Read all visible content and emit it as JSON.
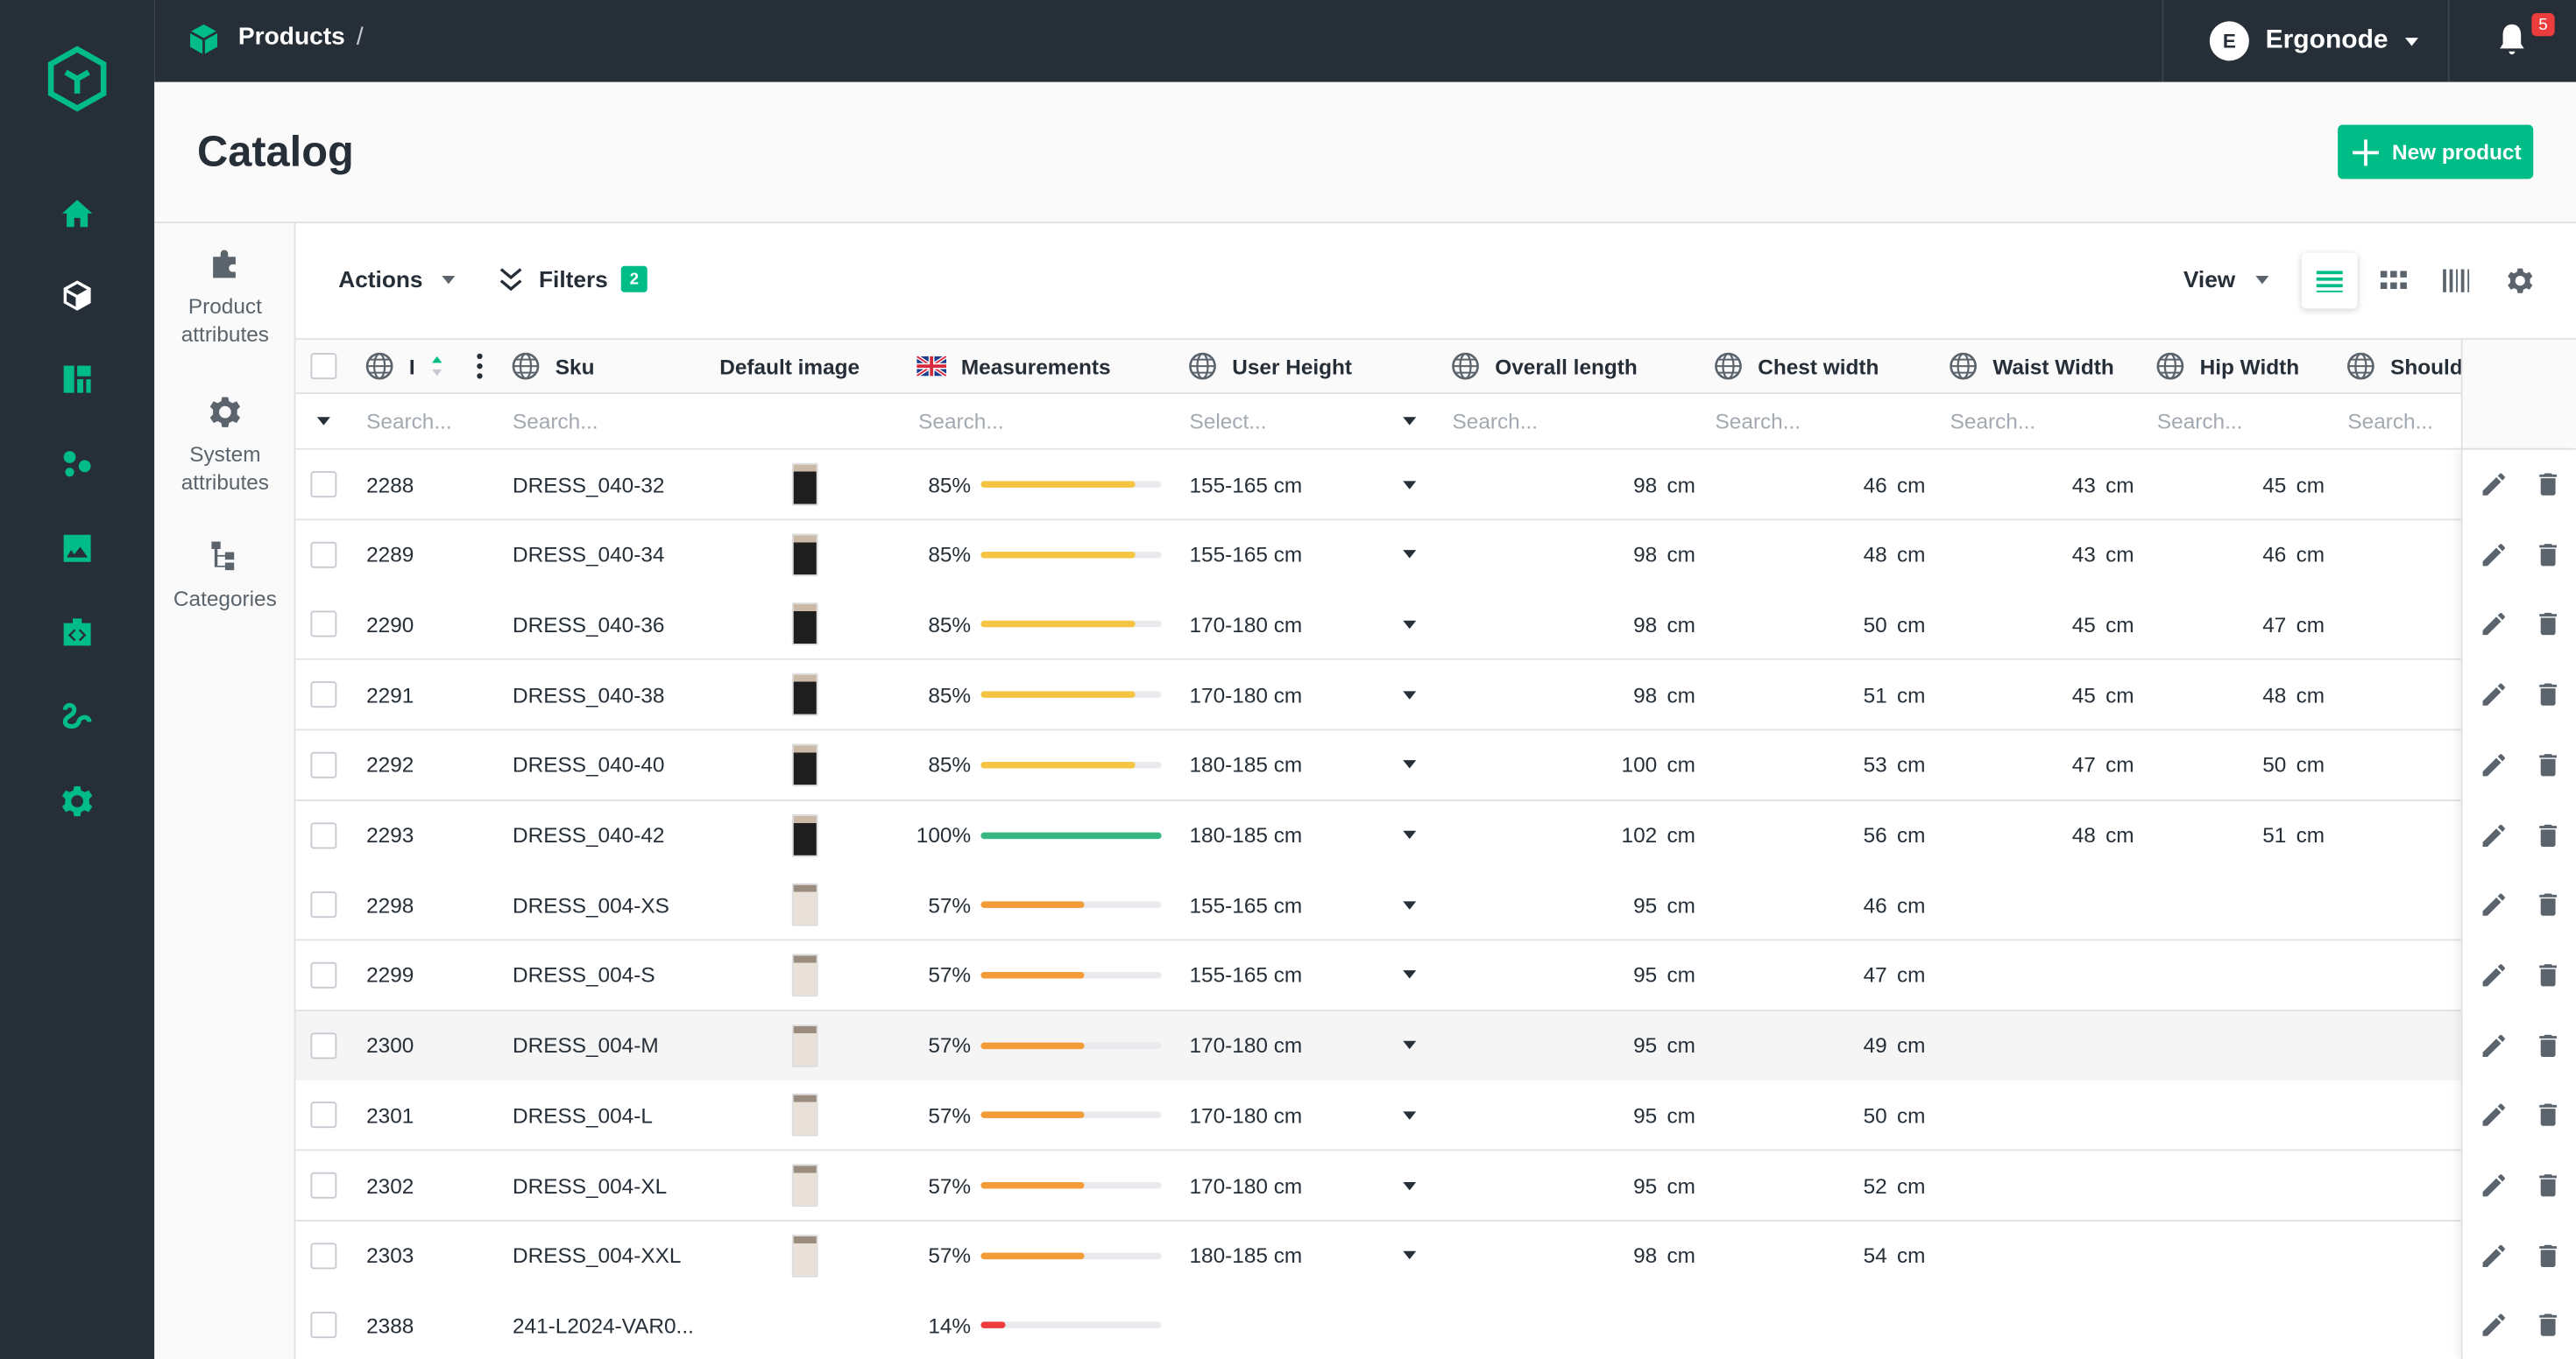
{
  "topbar": {
    "breadcrumb": "Products",
    "separator": "/",
    "user_initial": "E",
    "user_name": "Ergonode",
    "notifications": "5"
  },
  "nav": [
    "home-icon",
    "products-icon",
    "dashboard-icon",
    "collections-icon",
    "media-icon",
    "import-export-icon",
    "workflow-icon",
    "settings-icon"
  ],
  "page": {
    "title": "Catalog",
    "new_product": "New product"
  },
  "sidetabs": {
    "product_attributes": [
      "Product",
      "attributes"
    ],
    "system_attributes": [
      "System",
      "attributes"
    ],
    "categories": "Categories"
  },
  "toolbar": {
    "actions": "Actions",
    "filters": "Filters",
    "filters_count": "2",
    "view": "View"
  },
  "columns": {
    "id": "I",
    "sku": "Sku",
    "image": "Default image",
    "measurements": "Measurements",
    "user_height": "User Height",
    "overall_length": "Overall length",
    "chest_width": "Chest width",
    "waist_width": "Waist Width",
    "hip_width": "Hip Width",
    "shoulder": "Shoulde"
  },
  "filters_row": {
    "id": "Search...",
    "sku": "Search...",
    "measurements": "Search...",
    "user_height": "Select...",
    "overall_length": "Search...",
    "chest_width": "Search...",
    "waist_width": "Search...",
    "hip_width": "Search...",
    "shoulder": "Search..."
  },
  "unit": "cm",
  "colors": {
    "accent": "#00bc87",
    "dark": "#262f38",
    "yellow": "#f5c443",
    "orange": "#f29b38",
    "red": "#ec3c3c",
    "green": "#35b77f"
  },
  "rows": [
    {
      "id": "2288",
      "sku": "DRESS_040-32",
      "pct": "85%",
      "p": 0.85,
      "height": "155-165 cm",
      "length": "98",
      "chest": "46",
      "waist": "43",
      "hip": "45",
      "img": "dark"
    },
    {
      "id": "2289",
      "sku": "DRESS_040-34",
      "pct": "85%",
      "p": 0.85,
      "height": "155-165 cm",
      "length": "98",
      "chest": "48",
      "waist": "43",
      "hip": "46",
      "img": "dark"
    },
    {
      "id": "2290",
      "sku": "DRESS_040-36",
      "pct": "85%",
      "p": 0.85,
      "height": "170-180 cm",
      "length": "98",
      "chest": "50",
      "waist": "45",
      "hip": "47",
      "img": "dark"
    },
    {
      "id": "2291",
      "sku": "DRESS_040-38",
      "pct": "85%",
      "p": 0.85,
      "height": "170-180 cm",
      "length": "98",
      "chest": "51",
      "waist": "45",
      "hip": "48",
      "img": "dark"
    },
    {
      "id": "2292",
      "sku": "DRESS_040-40",
      "pct": "85%",
      "p": 0.85,
      "height": "180-185 cm",
      "length": "100",
      "chest": "53",
      "waist": "47",
      "hip": "50",
      "img": "dark"
    },
    {
      "id": "2293",
      "sku": "DRESS_040-42",
      "pct": "100%",
      "p": 1.0,
      "height": "180-185 cm",
      "length": "102",
      "chest": "56",
      "waist": "48",
      "hip": "51",
      "img": "dark"
    },
    {
      "id": "2298",
      "sku": "DRESS_004-XS",
      "pct": "57%",
      "p": 0.57,
      "height": "155-165 cm",
      "length": "95",
      "chest": "46",
      "waist": "",
      "hip": "",
      "img": "light"
    },
    {
      "id": "2299",
      "sku": "DRESS_004-S",
      "pct": "57%",
      "p": 0.57,
      "height": "155-165 cm",
      "length": "95",
      "chest": "47",
      "waist": "",
      "hip": "",
      "img": "light"
    },
    {
      "id": "2300",
      "sku": "DRESS_004-M",
      "pct": "57%",
      "p": 0.57,
      "height": "170-180 cm",
      "length": "95",
      "chest": "49",
      "waist": "",
      "hip": "",
      "img": "light"
    },
    {
      "id": "2301",
      "sku": "DRESS_004-L",
      "pct": "57%",
      "p": 0.57,
      "height": "170-180 cm",
      "length": "95",
      "chest": "50",
      "waist": "",
      "hip": "",
      "img": "light"
    },
    {
      "id": "2302",
      "sku": "DRESS_004-XL",
      "pct": "57%",
      "p": 0.57,
      "height": "170-180 cm",
      "length": "95",
      "chest": "52",
      "waist": "",
      "hip": "",
      "img": "light"
    },
    {
      "id": "2303",
      "sku": "DRESS_004-XXL",
      "pct": "57%",
      "p": 0.57,
      "height": "180-185 cm",
      "length": "98",
      "chest": "54",
      "waist": "",
      "hip": "",
      "img": "light"
    },
    {
      "id": "2388",
      "sku": "241-L2024-VAR0...",
      "pct": "14%",
      "p": 0.14,
      "height": "",
      "length": "",
      "chest": "",
      "waist": "",
      "hip": "",
      "img": ""
    }
  ]
}
